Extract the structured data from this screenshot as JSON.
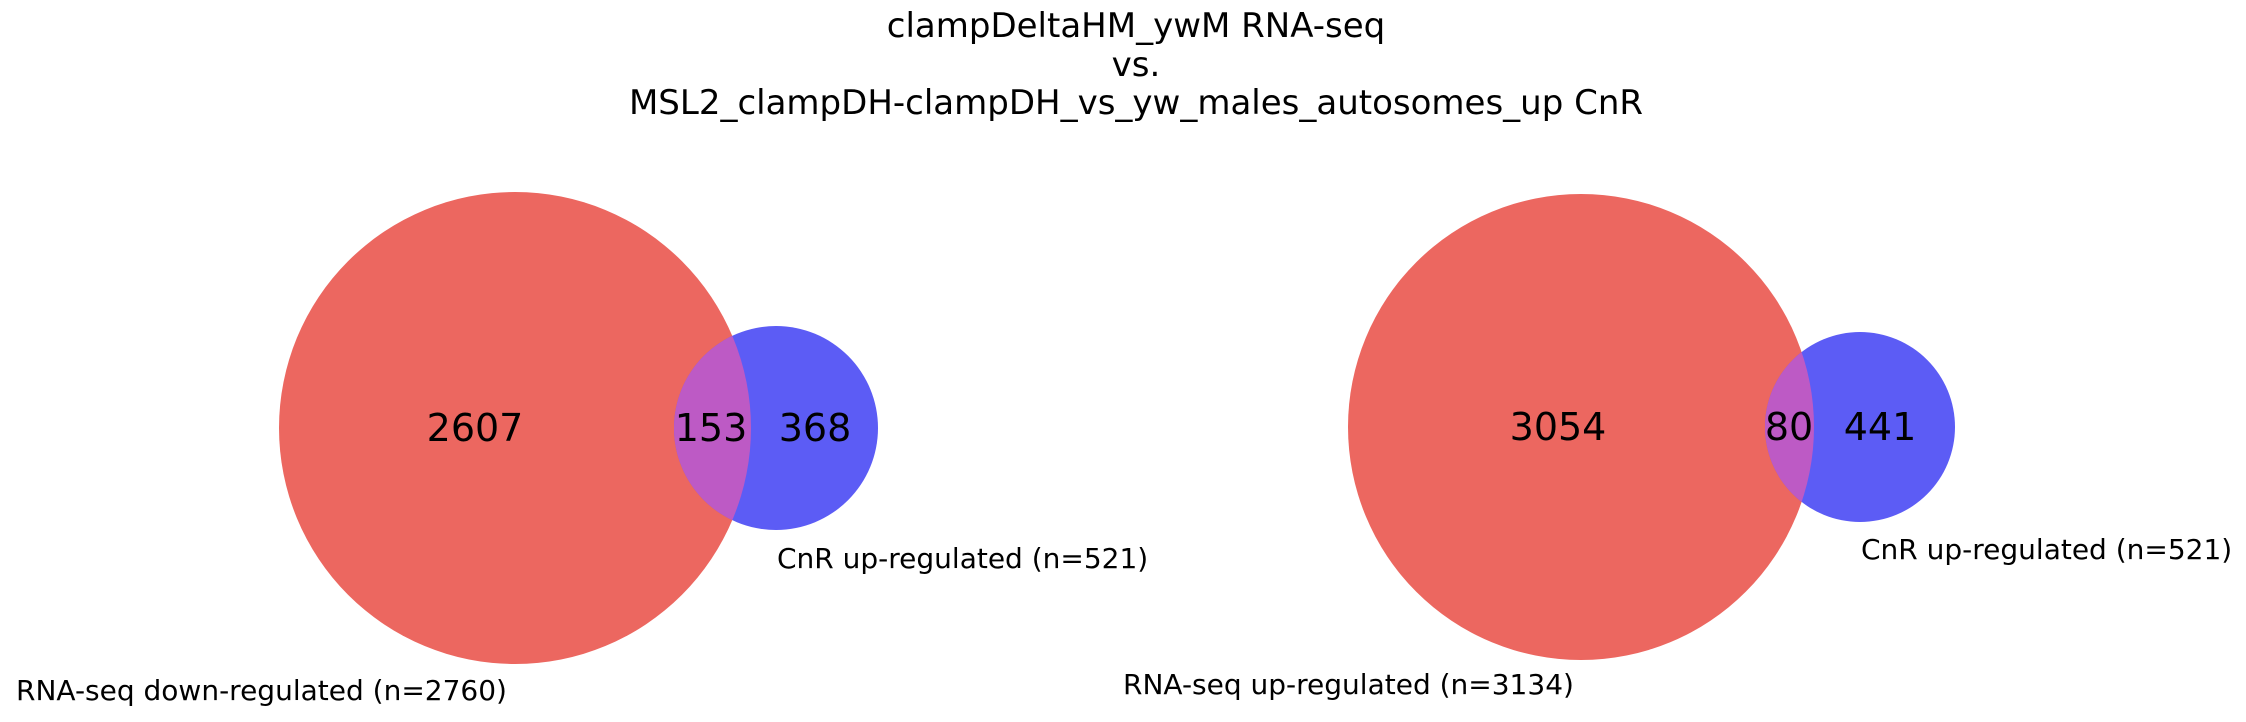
{
  "title": {
    "line1": "clampDeltaHM_ywM RNA-seq",
    "line2": "vs.",
    "line3": "MSL2_clampDH-clampDH_vs_yw_males_autosomes_up CnR"
  },
  "colors": {
    "set_a": "#ec6760",
    "set_b": "#5c5cf5",
    "overlap": "#bd5ac5"
  },
  "venn_left": {
    "set_a_label": "RNA-seq down-regulated (n=2760)",
    "set_b_label": "CnR up-regulated (n=521)",
    "only_a": "2607",
    "overlap": "153",
    "only_b": "368"
  },
  "venn_right": {
    "set_a_label": "RNA-seq up-regulated (n=3134)",
    "set_b_label": "CnR up-regulated (n=521)",
    "only_a": "3054",
    "overlap": "80",
    "only_b": "441"
  }
}
